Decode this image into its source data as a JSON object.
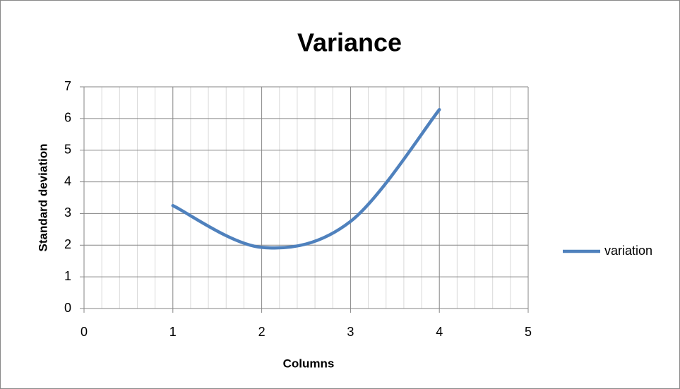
{
  "chart_data": {
    "type": "line",
    "title": "Variance",
    "x_label": "Columns",
    "y_label": "Standard deviation",
    "x": [
      1,
      2,
      3,
      4
    ],
    "series": [
      {
        "name": "variation",
        "color": "#4f81bd",
        "values": [
          3.25,
          1.93,
          2.75,
          6.28
        ]
      }
    ],
    "xlim": [
      0,
      5
    ],
    "xticks": [
      0,
      1,
      2,
      3,
      4,
      5
    ],
    "ylim": [
      0,
      7
    ],
    "yticks": [
      0,
      1,
      2,
      3,
      4,
      5,
      6,
      7
    ],
    "grid": true,
    "x_minor_divisions": 5,
    "smooth": true,
    "legend": "right"
  }
}
